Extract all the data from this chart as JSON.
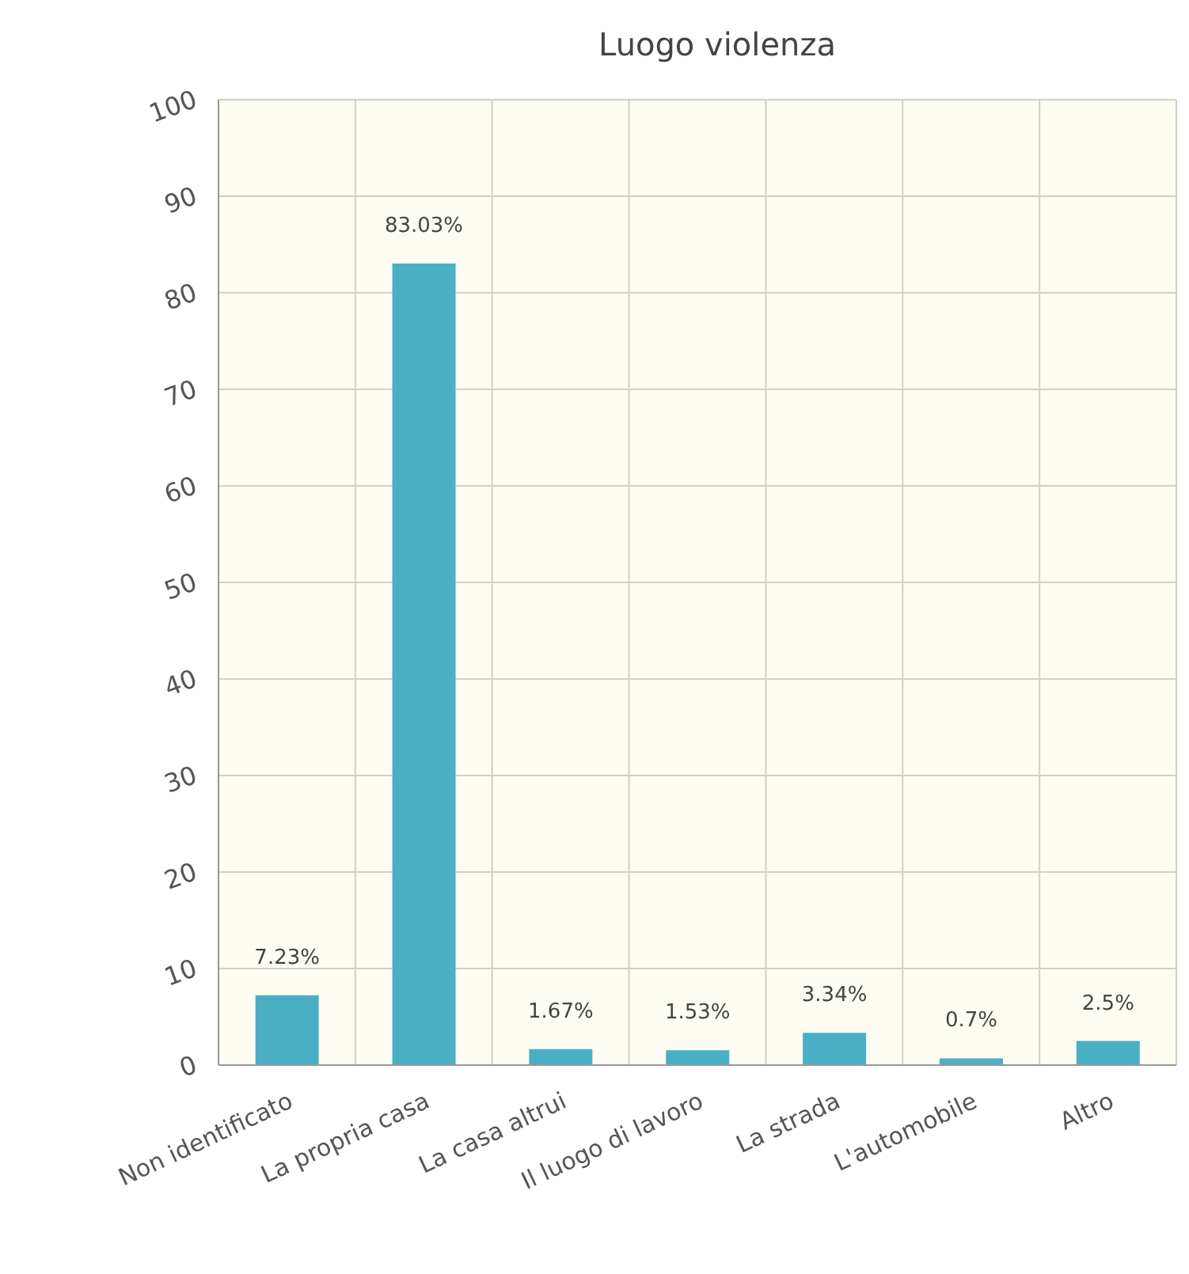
{
  "chart_data": {
    "type": "bar",
    "title": "Luogo violenza",
    "categories": [
      "Non identificato",
      "La propria casa",
      "La casa altrui",
      "Il luogo di lavoro",
      "La strada",
      "L'automobile",
      "Altro"
    ],
    "values": [
      7.23,
      83.03,
      1.67,
      1.53,
      3.34,
      0.7,
      2.5
    ],
    "value_labels": [
      "7.23%",
      "83.03%",
      "1.67%",
      "1.53%",
      "3.34%",
      "0.7%",
      "2.5%"
    ],
    "color": "#4aafc4",
    "ylim": [
      0,
      100
    ],
    "yticks": [
      0,
      10,
      20,
      30,
      40,
      50,
      60,
      70,
      80,
      90,
      100
    ],
    "grid": true
  }
}
